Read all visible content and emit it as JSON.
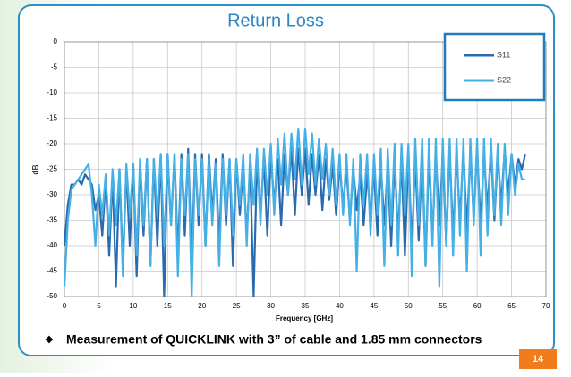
{
  "chart_data": {
    "type": "line",
    "title": "Return Loss",
    "xlabel": "Frequency [GHz]",
    "ylabel": "dB",
    "xlim": [
      0,
      70
    ],
    "ylim": [
      -50,
      0
    ],
    "xticks": [
      0,
      5,
      10,
      15,
      20,
      25,
      30,
      35,
      40,
      45,
      50,
      55,
      60,
      65,
      70
    ],
    "yticks": [
      0,
      -5,
      -10,
      -15,
      -20,
      -25,
      -30,
      -35,
      -40,
      -45,
      -50
    ],
    "grid": true,
    "legend": "upper right",
    "x": [
      0,
      0.5,
      1,
      1.5,
      2,
      2.5,
      3,
      3.5,
      4,
      4.5,
      5,
      5.5,
      6,
      6.5,
      7,
      7.5,
      8,
      8.5,
      9,
      9.5,
      10,
      10.5,
      11,
      11.5,
      12,
      12.5,
      13,
      13.5,
      14,
      14.5,
      15,
      15.5,
      16,
      16.5,
      17,
      17.5,
      18,
      18.5,
      19,
      19.5,
      20,
      20.5,
      21,
      21.5,
      22,
      22.5,
      23,
      23.5,
      24,
      24.5,
      25,
      25.5,
      26,
      26.5,
      27,
      27.5,
      28,
      28.5,
      29,
      29.5,
      30,
      30.5,
      31,
      31.5,
      32,
      32.5,
      33,
      33.5,
      34,
      34.5,
      35,
      35.5,
      36,
      36.5,
      37,
      37.5,
      38,
      38.5,
      39,
      39.5,
      40,
      40.5,
      41,
      41.5,
      42,
      42.5,
      43,
      43.5,
      44,
      44.5,
      45,
      45.5,
      46,
      46.5,
      47,
      47.5,
      48,
      48.5,
      49,
      49.5,
      50,
      50.5,
      51,
      51.5,
      52,
      52.5,
      53,
      53.5,
      54,
      54.5,
      55,
      55.5,
      56,
      56.5,
      57,
      57.5,
      58,
      58.5,
      59,
      59.5,
      60,
      60.5,
      61,
      61.5,
      62,
      62.5,
      63,
      63.5,
      64,
      64.5,
      65,
      65.5,
      66,
      66.5,
      67
    ],
    "series": [
      {
        "name": "S11",
        "color": "#2a6bb0",
        "values": [
          -40,
          -32,
          -28,
          -28,
          -27,
          -28,
          -26,
          -27,
          -28,
          -33,
          -30,
          -38,
          -27,
          -42,
          -26,
          -48,
          -25,
          -44,
          -25,
          -40,
          -24,
          -46,
          -24,
          -38,
          -23,
          -44,
          -23,
          -40,
          -22,
          -50,
          -22,
          -36,
          -22,
          -42,
          -22,
          -38,
          -21,
          -44,
          -22,
          -36,
          -22,
          -40,
          -22,
          -34,
          -23,
          -40,
          -22,
          -36,
          -23,
          -44,
          -23,
          -34,
          -24,
          -38,
          -24,
          -50,
          -23,
          -34,
          -23,
          -38,
          -22,
          -32,
          -23,
          -36,
          -22,
          -30,
          -21,
          -34,
          -21,
          -30,
          -21,
          -32,
          -22,
          -30,
          -22,
          -33,
          -23,
          -31,
          -24,
          -34,
          -24,
          -32,
          -25,
          -35,
          -25,
          -33,
          -26,
          -36,
          -26,
          -34,
          -25,
          -38,
          -24,
          -36,
          -24,
          -40,
          -23,
          -38,
          -23,
          -42,
          -22,
          -40,
          -23,
          -39,
          -22,
          -44,
          -22,
          -38,
          -22,
          -36,
          -22,
          -40,
          -21,
          -38,
          -22,
          -35,
          -21,
          -37,
          -22,
          -34,
          -21,
          -36,
          -22,
          -33,
          -21,
          -35,
          -22,
          -32,
          -21,
          -30,
          -22,
          -28,
          -23,
          -25,
          -22
        ]
      },
      {
        "name": "S22",
        "color": "#45b0e5",
        "values": [
          -48,
          -35,
          -29,
          -28,
          -27,
          -26,
          -25,
          -24,
          -30,
          -40,
          -28,
          -34,
          -26,
          -38,
          -25,
          -36,
          -25,
          -46,
          -24,
          -34,
          -24,
          -42,
          -23,
          -36,
          -23,
          -44,
          -23,
          -34,
          -22,
          -40,
          -22,
          -36,
          -22,
          -46,
          -23,
          -34,
          -22,
          -50,
          -23,
          -34,
          -23,
          -40,
          -23,
          -36,
          -24,
          -44,
          -23,
          -34,
          -23,
          -38,
          -23,
          -32,
          -22,
          -40,
          -22,
          -32,
          -21,
          -36,
          -21,
          -30,
          -20,
          -34,
          -19,
          -28,
          -18,
          -30,
          -18,
          -27,
          -17,
          -28,
          -17,
          -26,
          -18,
          -28,
          -19,
          -27,
          -20,
          -30,
          -21,
          -32,
          -22,
          -34,
          -22,
          -36,
          -23,
          -45,
          -22,
          -32,
          -22,
          -38,
          -22,
          -34,
          -21,
          -44,
          -21,
          -36,
          -20,
          -42,
          -20,
          -34,
          -20,
          -46,
          -19,
          -36,
          -19,
          -44,
          -19,
          -40,
          -19,
          -48,
          -19,
          -40,
          -19,
          -42,
          -19,
          -38,
          -19,
          -45,
          -19,
          -36,
          -19,
          -42,
          -19,
          -38,
          -19,
          -34,
          -20,
          -36,
          -20,
          -34,
          -22,
          -30,
          -24,
          -27,
          -27
        ]
      }
    ]
  },
  "slide": {
    "note": "Measurement of QUICKLINK with 3” of cable and 1.85 mm connectors",
    "page": "14"
  }
}
